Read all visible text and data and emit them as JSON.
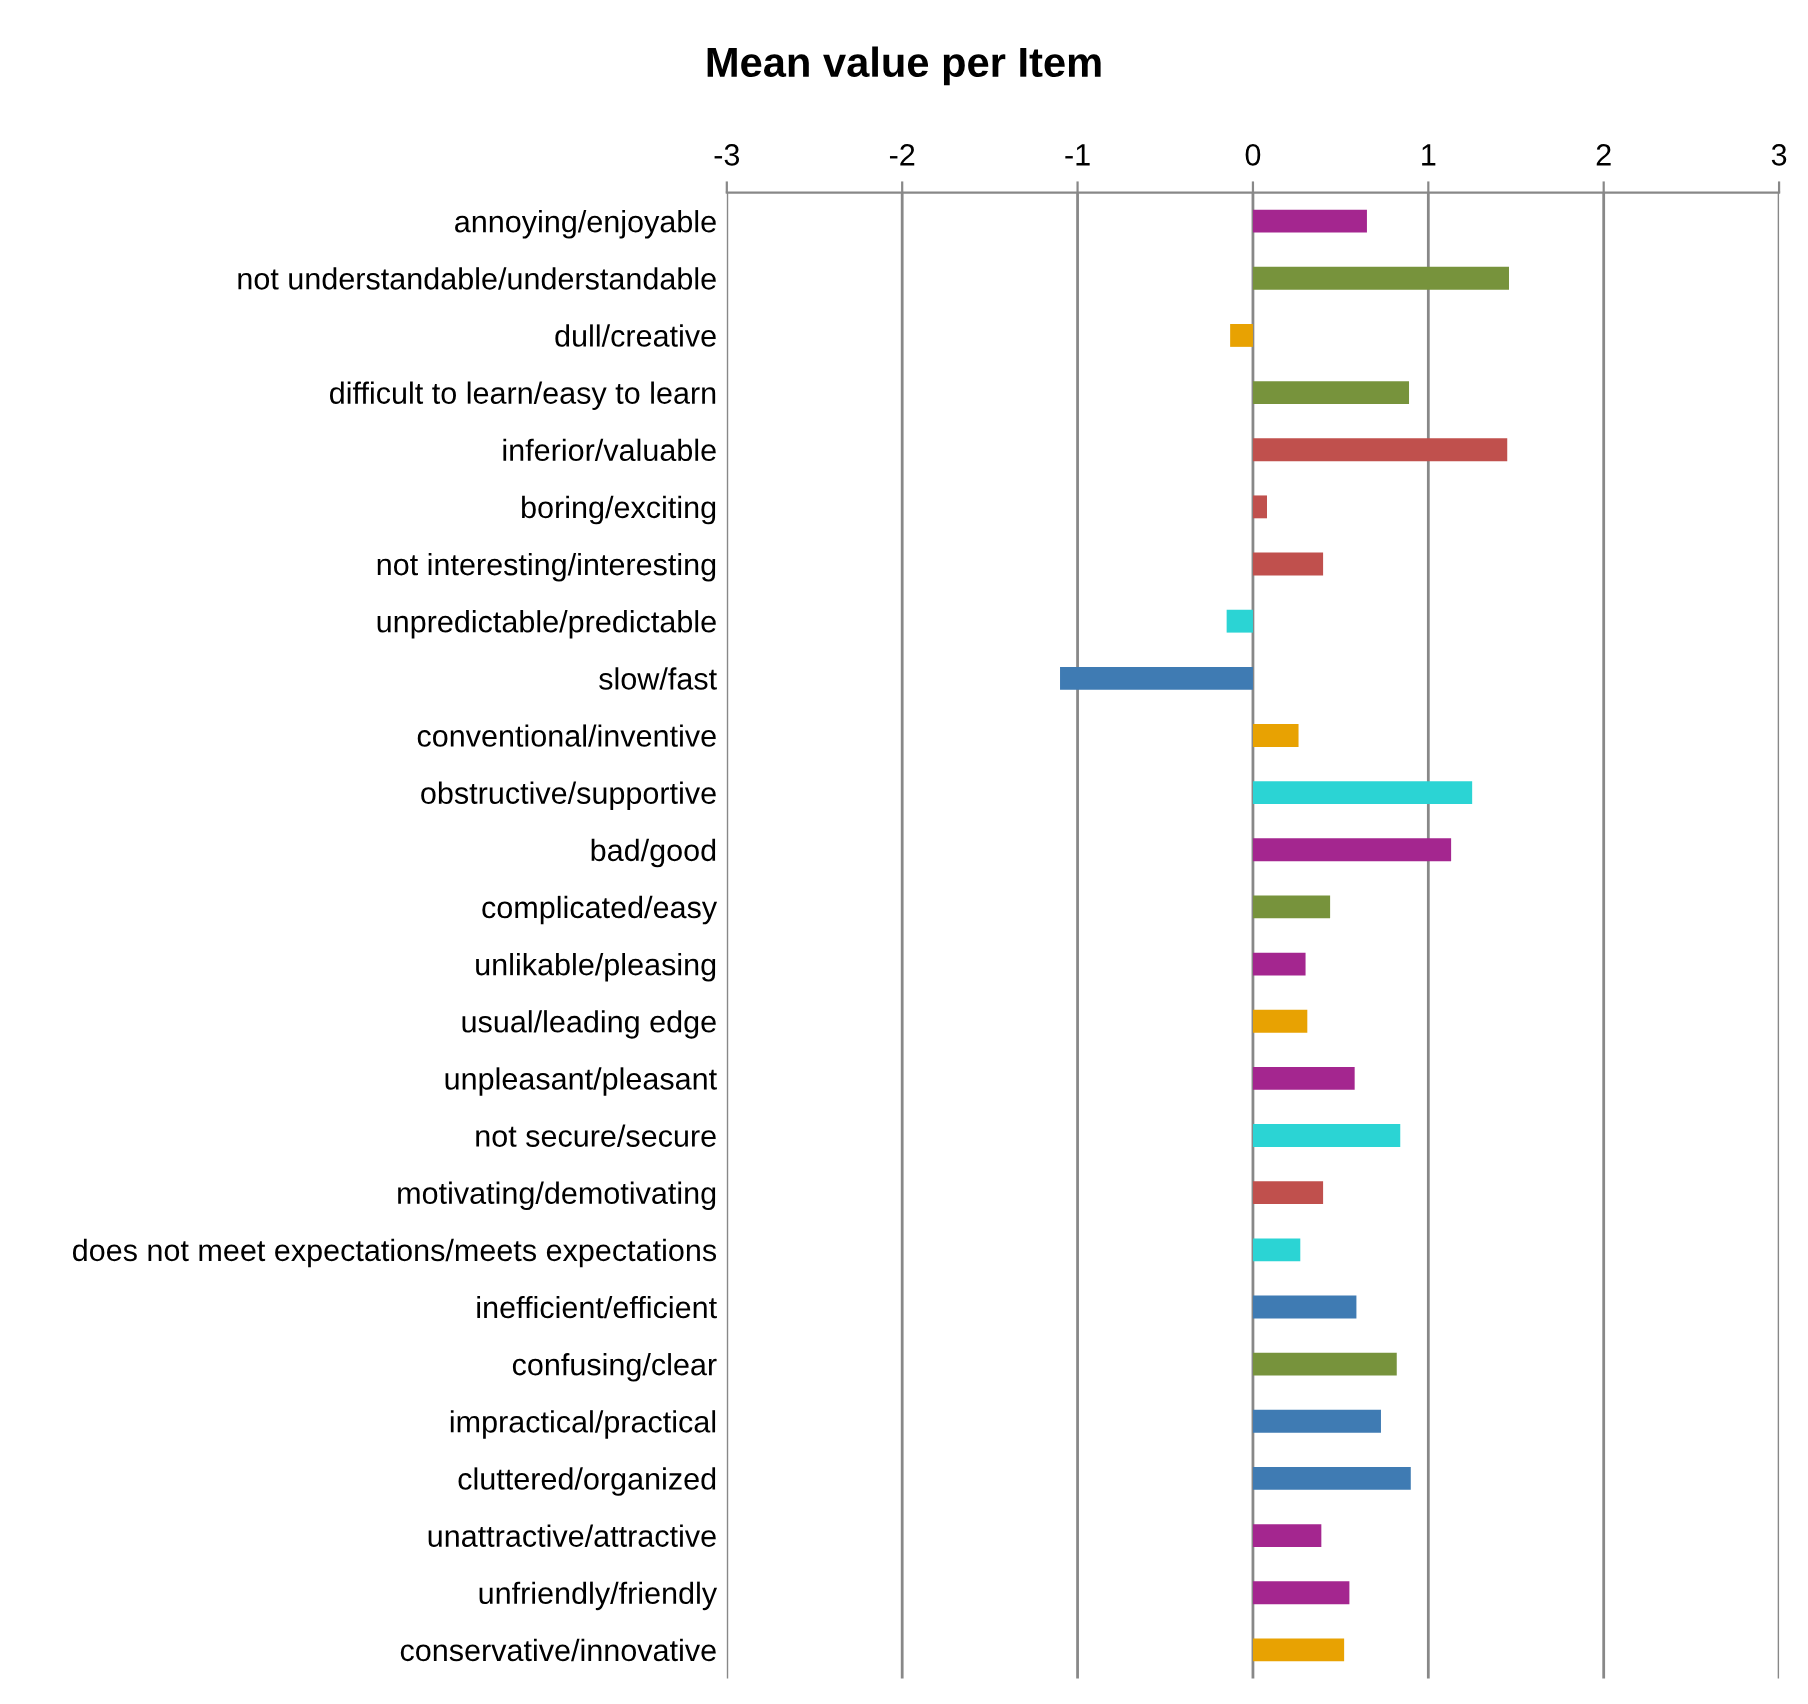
{
  "chart_data": {
    "type": "bar",
    "orientation": "horizontal",
    "title": "Mean value per Item",
    "categories": [
      "annoying/enjoyable",
      "not understandable/understandable",
      "dull/creative",
      "difficult to learn/easy to learn",
      "inferior/valuable",
      "boring/exciting",
      "not interesting/interesting",
      "unpredictable/predictable",
      "slow/fast",
      "conventional/inventive",
      "obstructive/supportive",
      "bad/good",
      "complicated/easy",
      "unlikable/pleasing",
      "usual/leading edge",
      "unpleasant/pleasant",
      "not secure/secure",
      "motivating/demotivating",
      "does not meet expectations/meets expectations",
      "inefficient/efficient",
      "confusing/clear",
      "impractical/practical",
      "cluttered/organized",
      "unattractive/attractive",
      "unfriendly/friendly",
      "conservative/innovative"
    ],
    "values": [
      0.65,
      1.46,
      -0.13,
      0.89,
      1.45,
      0.08,
      0.4,
      -0.15,
      -1.1,
      0.26,
      1.25,
      1.13,
      0.44,
      0.3,
      0.31,
      0.58,
      0.84,
      0.4,
      0.27,
      0.59,
      0.82,
      0.73,
      0.9,
      0.39,
      0.55,
      0.52
    ],
    "colors": [
      "#a4268f",
      "#77933c",
      "#e8a202",
      "#77933c",
      "#c0504d",
      "#c0504d",
      "#c0504d",
      "#2bd4d4",
      "#3f7bb3",
      "#e8a202",
      "#2bd4d4",
      "#a4268f",
      "#77933c",
      "#a4268f",
      "#e8a202",
      "#a4268f",
      "#2bd4d4",
      "#c0504d",
      "#2bd4d4",
      "#3f7bb3",
      "#77933c",
      "#3f7bb3",
      "#3f7bb3",
      "#a4268f",
      "#a4268f",
      "#e8a202"
    ],
    "xlim": [
      -3,
      3
    ],
    "xticks": [
      -3,
      -2,
      -1,
      0,
      1,
      2,
      3
    ],
    "grid": "x"
  }
}
